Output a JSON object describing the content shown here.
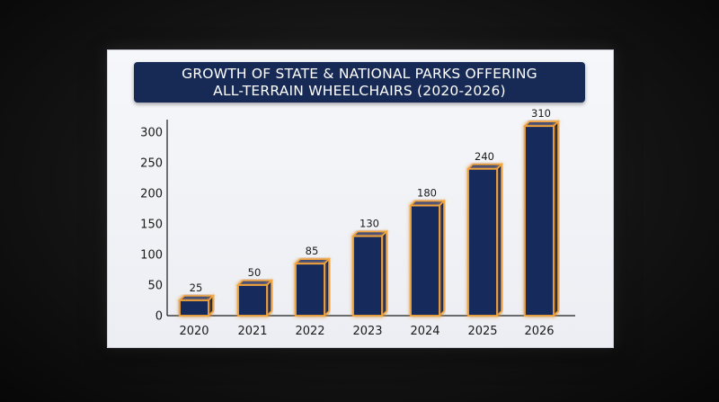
{
  "title": "GROWTH OF STATE & NATIONAL PARKS OFFERING\nALL-TERRAIN WHEELCHAIRS (2020-2026)",
  "colors": {
    "bar_front": "#182c5c",
    "bar_top": "#2a4380",
    "bar_side": "#0f1f46",
    "bar_glow": "#f3a43a",
    "title_bg": "#172a55"
  },
  "chart_data": {
    "type": "bar",
    "title": "GROWTH OF STATE & NATIONAL PARKS OFFERING ALL-TERRAIN WHEELCHAIRS (2020-2026)",
    "xlabel": "",
    "ylabel": "",
    "categories": [
      "2020",
      "2021",
      "2022",
      "2023",
      "2024",
      "2025",
      "2026"
    ],
    "values": [
      25,
      50,
      85,
      130,
      180,
      240,
      310
    ],
    "data_labels": [
      "25",
      "50",
      "85",
      "130",
      "180",
      "240",
      "310"
    ],
    "yticks": [
      "0",
      "50",
      "100",
      "150",
      "200",
      "250",
      "300"
    ],
    "ylim": [
      0,
      300
    ],
    "grid": false,
    "legend": "none"
  }
}
